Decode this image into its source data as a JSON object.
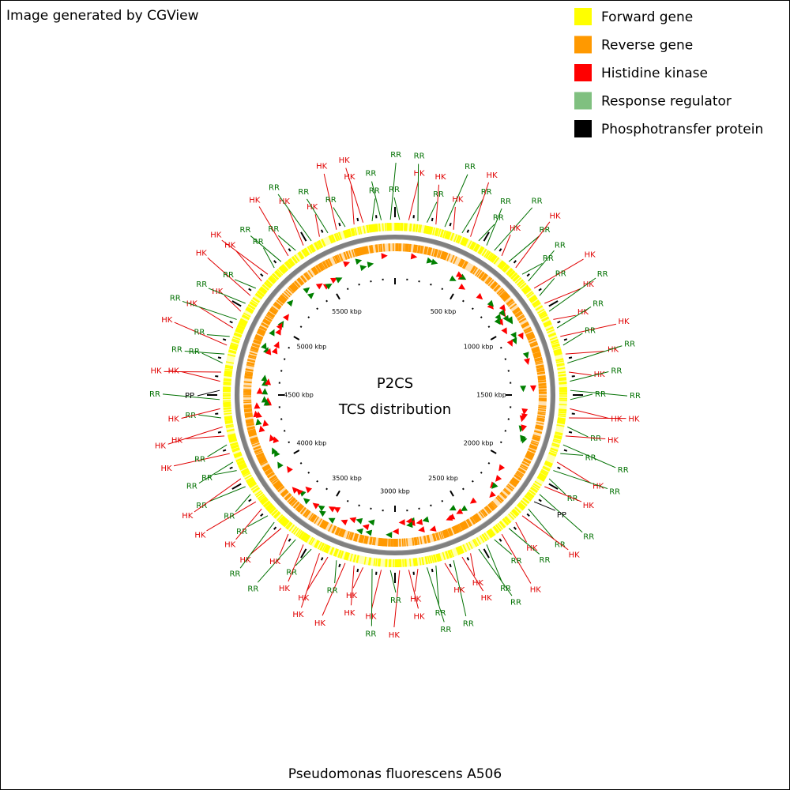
{
  "credit": "Image generated by CGView",
  "legend": [
    {
      "label": "Forward gene",
      "color": "#ffff00"
    },
    {
      "label": "Reverse gene",
      "color": "#ff9900"
    },
    {
      "label": "Histidine kinase",
      "color": "#ff0000"
    },
    {
      "label": "Response regulator",
      "color": "#80c080"
    },
    {
      "label": "Phosphotransfer protein",
      "color": "#000000"
    }
  ],
  "center_title": "P2CS",
  "center_subtitle": "TCS distribution",
  "organism": "Pseudomonas fluorescens A506",
  "scale_labels": [
    "500 kbp",
    "1000 kbp",
    "1500 kbp",
    "2000 kbp",
    "2500 kbp",
    "3000 kbp",
    "3500 kbp",
    "4000 kbp",
    "4500 kbp",
    "5000 kbp",
    "5500 kbp"
  ],
  "label_colors": {
    "HK": "#e00000",
    "RR": "#007000",
    "PP": "#000000"
  },
  "feature_labels": [
    "RR",
    "HK",
    "RR",
    "RR",
    "HK",
    "RR",
    "HK",
    "RR",
    "HK",
    "RR",
    "RR",
    "RR",
    "HK",
    "RR",
    "HK",
    "RR",
    "RR",
    "HK",
    "RR",
    "HK",
    "RR",
    "HK",
    "RR",
    "HK",
    "RR",
    "HK",
    "RR",
    "HK",
    "RR",
    "RR",
    "RR",
    "HK",
    "HK",
    "RR",
    "HK",
    "RR",
    "RR",
    "HK",
    "RR",
    "RR",
    "HK",
    "RR",
    "PP",
    "RR",
    "HK",
    "HK",
    "RR",
    "HK",
    "RR",
    "RR",
    "RR",
    "HK",
    "HK",
    "RR",
    "HK",
    "RR",
    "RR",
    "HK",
    "HK",
    "HK",
    "RR",
    "HK",
    "RR",
    "HK",
    "HK",
    "HK",
    "RR",
    "HK",
    "HK",
    "RR",
    "HK",
    "RR",
    "HK",
    "HK",
    "RR",
    "RR",
    "HK",
    "HK",
    "RR",
    "RR",
    "HK",
    "RR",
    "RR",
    "HK",
    "RR",
    "HK",
    "HK",
    "RR",
    "HK",
    "RR",
    "PP",
    "HK",
    "HK",
    "RR",
    "RR",
    "HK",
    "RR",
    "HK",
    "RR",
    "HK",
    "RR",
    "HK",
    "RR",
    "HK",
    "HK",
    "RR",
    "RR",
    "HK",
    "RR",
    "HK",
    "RR",
    "HK",
    "RR",
    "HK",
    "RR",
    "HK",
    "HK",
    "RR",
    "RR",
    "RR"
  ]
}
